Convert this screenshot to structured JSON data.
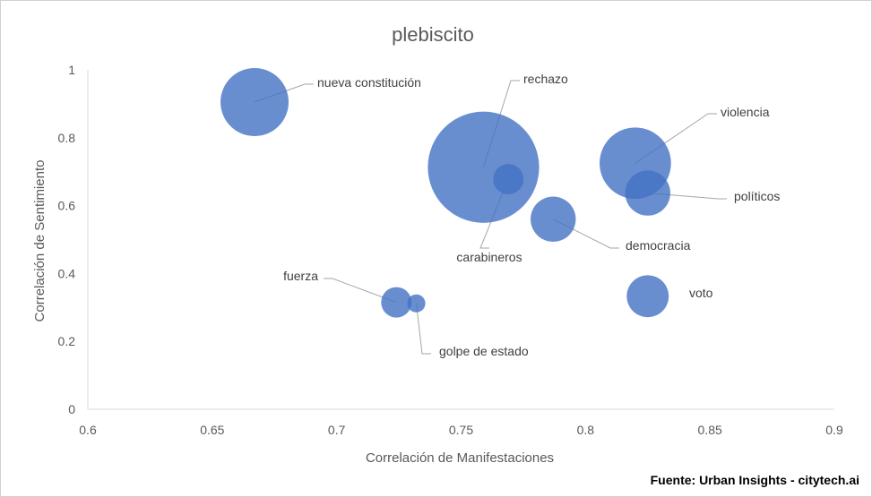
{
  "chart_data": {
    "type": "scatter",
    "title": "plebiscito",
    "xlabel": "Correlación de Manifestaciones",
    "ylabel": "Correlación de Sentimiento",
    "xlim": [
      0.6,
      0.9
    ],
    "ylim": [
      0,
      1
    ],
    "xticks": [
      "0.6",
      "0.65",
      "0.7",
      "0.75",
      "0.8",
      "0.85",
      "0.9"
    ],
    "yticks": [
      "0",
      "0.2",
      "0.4",
      "0.6",
      "0.8",
      "1"
    ],
    "grid": false,
    "bubble_color": "#4472C4",
    "points": [
      {
        "label": "nueva constitución",
        "x": 0.667,
        "y": 0.905,
        "size": 1.0
      },
      {
        "label": "rechazo",
        "x": 0.759,
        "y": 0.713,
        "size": 2.67
      },
      {
        "label": "carabineros",
        "x": 0.769,
        "y": 0.678,
        "size": 0.2
      },
      {
        "label": "violencia",
        "x": 0.82,
        "y": 0.725,
        "size": 1.1
      },
      {
        "label": "políticos",
        "x": 0.825,
        "y": 0.637,
        "size": 0.44
      },
      {
        "label": "democracia",
        "x": 0.787,
        "y": 0.56,
        "size": 0.44
      },
      {
        "label": "voto",
        "x": 0.825,
        "y": 0.333,
        "size": 0.38
      },
      {
        "label": "fuerza",
        "x": 0.724,
        "y": 0.315,
        "size": 0.2
      },
      {
        "label": "golpe de estado",
        "x": 0.732,
        "y": 0.312,
        "size": 0.07
      }
    ]
  },
  "source": "Fuente: Urban Insights - citytech.ai"
}
